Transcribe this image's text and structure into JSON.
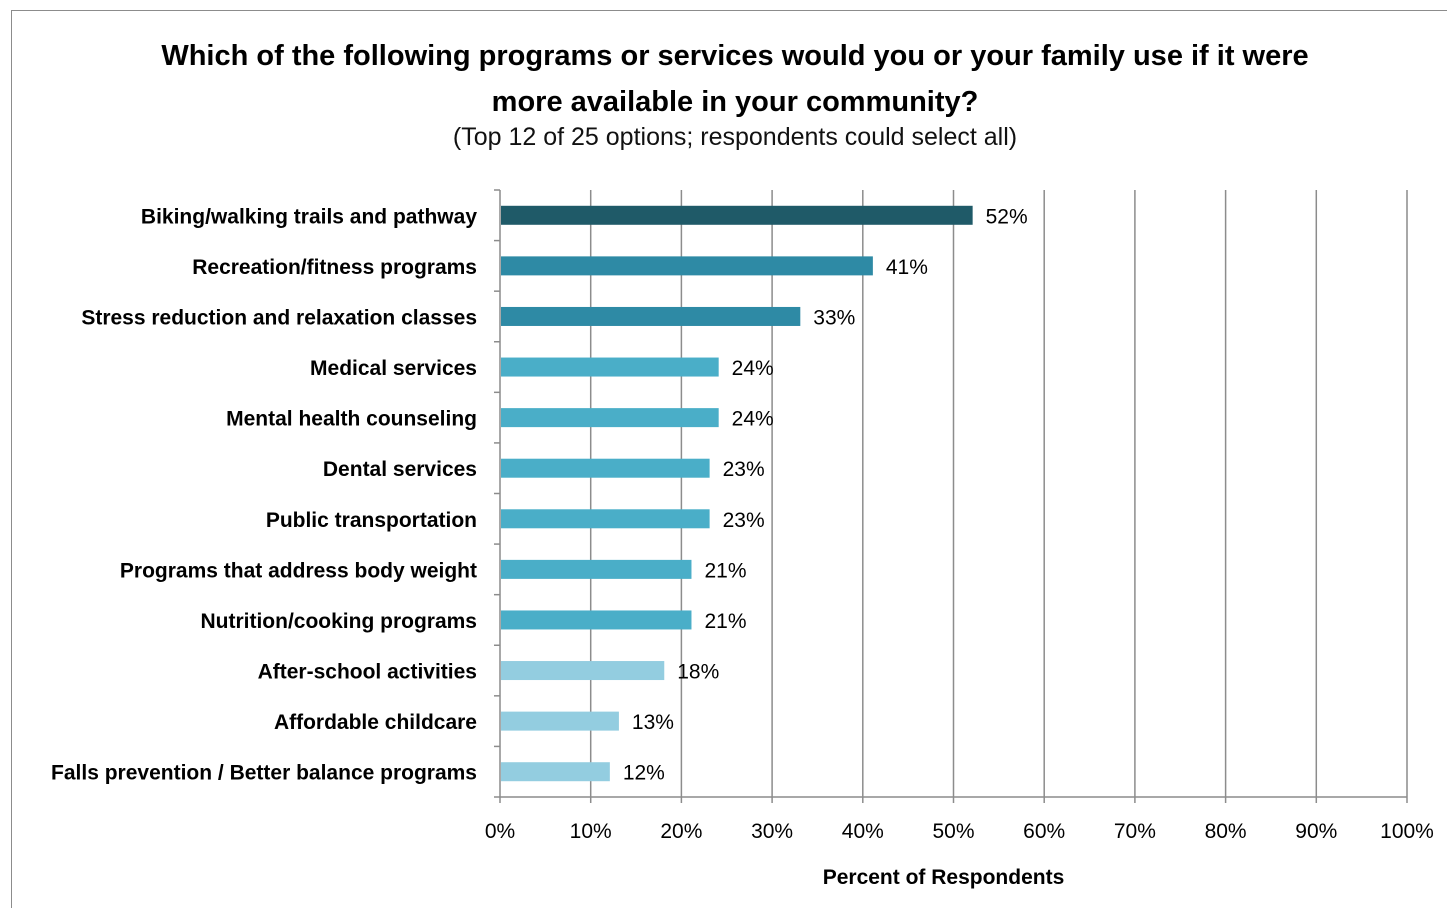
{
  "chart_data": {
    "type": "bar",
    "orientation": "horizontal",
    "title": "Which of the following programs or services would you or your family use if it were more available in your community?",
    "subtitle": "(Top 12 of 25 options; respondents could select all)",
    "xlabel": "Percent of Respondents",
    "ylabel": "",
    "xlim": [
      0,
      100
    ],
    "x_ticks": [
      "0%",
      "10%",
      "20%",
      "30%",
      "40%",
      "50%",
      "60%",
      "70%",
      "80%",
      "90%",
      "100%"
    ],
    "grid": "vertical",
    "legend": "none",
    "categories": [
      "Biking/walking trails and pathway",
      "Recreation/fitness programs",
      "Stress reduction and relaxation classes",
      "Medical services",
      "Mental health counseling",
      "Dental services",
      "Public transportation",
      "Programs that address body weight",
      "Nutrition/cooking programs",
      "After-school activities",
      "Affordable childcare",
      "Falls prevention / Better balance programs"
    ],
    "values": [
      52,
      41,
      33,
      24,
      24,
      23,
      23,
      21,
      21,
      18,
      13,
      12
    ],
    "value_labels": [
      "52%",
      "41%",
      "33%",
      "24%",
      "24%",
      "23%",
      "23%",
      "21%",
      "21%",
      "18%",
      "13%",
      "12%"
    ],
    "bar_colors": [
      "#1f5a68",
      "#2e8aa5",
      "#2e8aa5",
      "#4aaec8",
      "#4aaec8",
      "#4aaec8",
      "#4aaec8",
      "#4aaec8",
      "#4aaec8",
      "#93cde0",
      "#93cde0",
      "#93cde0"
    ],
    "colors": {
      "grid": "#8c8c8c",
      "axis": "#8c8c8c",
      "text": "#000000"
    }
  }
}
